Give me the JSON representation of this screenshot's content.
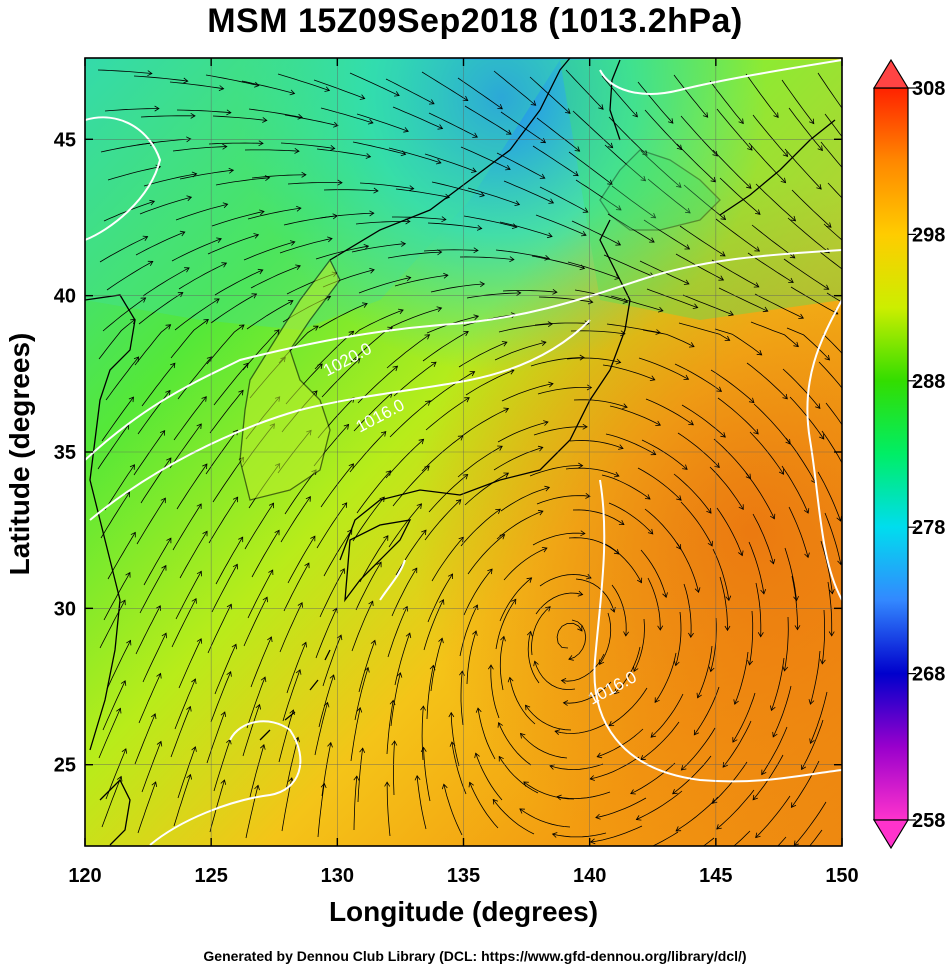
{
  "title": "MSM 15Z09Sep2018 (1013.2hPa)",
  "xlabel": "Longitude (degrees)",
  "ylabel": "Latitude  (degrees)",
  "footer": "Generated by Dennou Club Library (DCL: https://www.gfd-dennou.org/library/dcl/)",
  "map": {
    "lon_range": [
      120,
      150
    ],
    "lat_range": [
      22.4,
      47.6
    ],
    "lon_ticks": [
      120,
      125,
      130,
      135,
      140,
      145,
      150
    ],
    "lat_ticks": [
      25,
      30,
      35,
      40,
      45
    ],
    "grid": true,
    "contour_labels": [
      {
        "text": "1020.0",
        "lon": 130.5,
        "lat": 37.8
      },
      {
        "text": "1016.0",
        "lon": 131.8,
        "lat": 36.0
      },
      {
        "text": "1016.0",
        "lon": 141.0,
        "lat": 27.3
      }
    ],
    "colors": {
      "contour": "#ffffff",
      "coast": "#000000",
      "streamline": "#000000"
    }
  },
  "colorbar": {
    "min": 258,
    "max": 308,
    "ticks": [
      308,
      298,
      288,
      278,
      268,
      258
    ],
    "orientation": "right",
    "colors": [
      "#ff33cc",
      "#9900cc",
      "#0000cc",
      "#3388ff",
      "#00ddee",
      "#00ee66",
      "#33dd00",
      "#ccee00",
      "#ffcc00",
      "#ff8800",
      "#ff2200"
    ]
  },
  "chart_data": {
    "type": "heatmap",
    "title": "MSM 15Z09Sep2018 (1013.2hPa)",
    "xlabel": "Longitude (degrees)",
    "ylabel": "Latitude  (degrees)",
    "xlim": [
      120,
      150
    ],
    "ylim": [
      22.4,
      47.6
    ],
    "zlim": [
      258,
      308
    ]
  }
}
